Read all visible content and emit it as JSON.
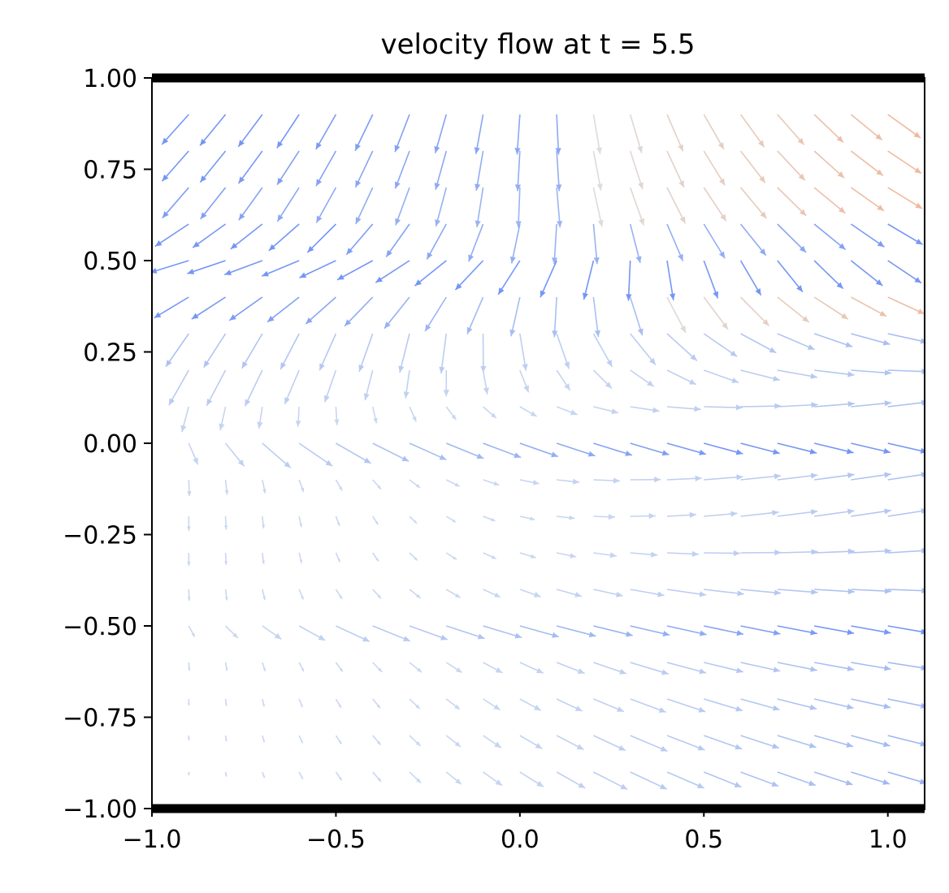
{
  "chart_data": {
    "type": "quiver",
    "title": "velocity flow at t = 5.5",
    "xlabel": "",
    "ylabel": "",
    "xlim": [
      -1.0,
      1.1
    ],
    "ylim": [
      -1.0,
      1.0
    ],
    "grid": false,
    "legend": "none",
    "xticks": [
      -1.0,
      -0.5,
      0.0,
      0.5,
      1.0
    ],
    "xtick_labels": [
      "−1.0",
      "−0.5",
      "0.0",
      "0.5",
      "1.0"
    ],
    "yticks": [
      1.0,
      0.75,
      0.5,
      0.25,
      0.0,
      -0.25,
      -0.5,
      -0.75,
      -1.0
    ],
    "ytick_labels": [
      "1.00",
      "0.75",
      "0.50",
      "0.25",
      "0.00",
      "−0.25",
      "−0.50",
      "−0.75",
      "−1.00"
    ],
    "walls": [
      -1.0,
      1.0
    ],
    "grid_x": [
      -0.9,
      -0.8,
      -0.7,
      -0.6,
      -0.5,
      -0.4,
      -0.3,
      -0.2,
      -0.1,
      0.0,
      0.1,
      0.2,
      0.3,
      0.4,
      0.5,
      0.6,
      0.7,
      0.8,
      0.9,
      1.0
    ],
    "grid_y": [
      0.9,
      0.8,
      0.7,
      0.6,
      0.5,
      0.4,
      0.3,
      0.2,
      0.1,
      0.0,
      -0.1,
      -0.2,
      -0.3,
      -0.4,
      -0.5,
      -0.6,
      -0.7,
      -0.8,
      -0.9
    ],
    "colormap": "coolwarm",
    "colors": {
      "blue": "#3b4cc0",
      "neutral": "#dddddd",
      "red": "#b40426",
      "wall": "#000000"
    }
  }
}
